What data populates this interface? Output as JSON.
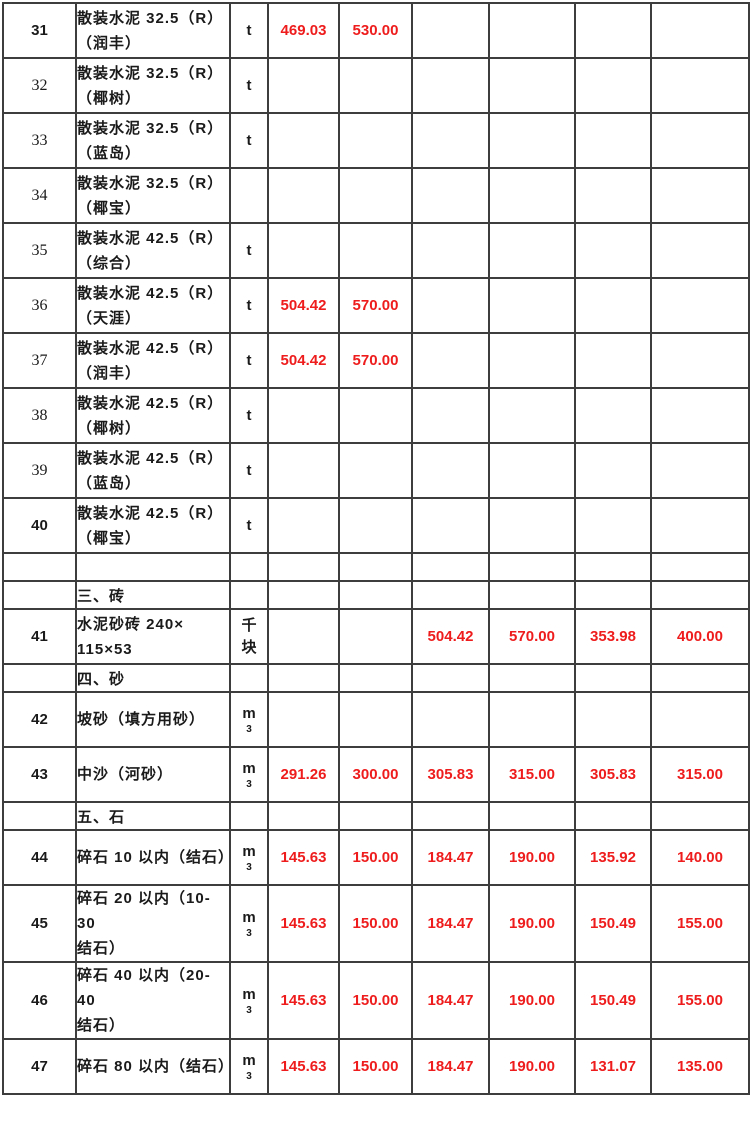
{
  "colors": {
    "price_red": "#ee1c1c",
    "grid_line": "#3d3d3d",
    "text": "#1a1a1a",
    "page_background": "#ffffff"
  },
  "table": {
    "price_column_count": 6,
    "rows": [
      {
        "type": "item",
        "no": "31",
        "num_serif": false,
        "name": "散装水泥 32.5（R）\n（润丰）",
        "unit": "t",
        "prices": [
          "469.03",
          "530.00",
          "",
          "",
          "",
          ""
        ]
      },
      {
        "type": "item",
        "no": "32",
        "num_serif": true,
        "name": "散装水泥 32.5（R）\n（椰树）",
        "unit": "t",
        "prices": [
          "",
          "",
          "",
          "",
          "",
          ""
        ]
      },
      {
        "type": "item",
        "no": "33",
        "num_serif": true,
        "name": "散装水泥 32.5（R）\n（蓝岛）",
        "unit": "t",
        "prices": [
          "",
          "",
          "",
          "",
          "",
          ""
        ]
      },
      {
        "type": "item",
        "no": "34",
        "num_serif": true,
        "name": "散装水泥 32.5（R）\n（椰宝）",
        "unit": "",
        "prices": [
          "",
          "",
          "",
          "",
          "",
          ""
        ]
      },
      {
        "type": "item",
        "no": "35",
        "num_serif": true,
        "name": "散装水泥 42.5（R）\n（综合）",
        "unit": "t",
        "prices": [
          "",
          "",
          "",
          "",
          "",
          ""
        ]
      },
      {
        "type": "item",
        "no": "36",
        "num_serif": true,
        "name": "散装水泥 42.5（R）\n（天涯）",
        "unit": "t",
        "prices": [
          "504.42",
          "570.00",
          "",
          "",
          "",
          ""
        ]
      },
      {
        "type": "item",
        "no": "37",
        "num_serif": true,
        "name": "散装水泥 42.5（R）\n（润丰）",
        "unit": "t",
        "prices": [
          "504.42",
          "570.00",
          "",
          "",
          "",
          ""
        ]
      },
      {
        "type": "item",
        "no": "38",
        "num_serif": true,
        "name": "散装水泥 42.5（R）\n（椰树）",
        "unit": "t",
        "prices": [
          "",
          "",
          "",
          "",
          "",
          ""
        ]
      },
      {
        "type": "item",
        "no": "39",
        "num_serif": true,
        "name": "散装水泥 42.5（R）\n（蓝岛）",
        "unit": "t",
        "prices": [
          "",
          "",
          "",
          "",
          "",
          ""
        ]
      },
      {
        "type": "item",
        "no": "40",
        "num_serif": false,
        "name": "散装水泥 42.5（R）\n（椰宝）",
        "unit": "t",
        "prices": [
          "",
          "",
          "",
          "",
          "",
          ""
        ]
      },
      {
        "type": "empty"
      },
      {
        "type": "section",
        "name": "三、砖"
      },
      {
        "type": "item",
        "no": "41",
        "num_serif": false,
        "name": "水泥砂砖 240×\n115×53",
        "unit": "千块",
        "prices": [
          "",
          "",
          "504.42",
          "570.00",
          "353.98",
          "400.00"
        ]
      },
      {
        "type": "section",
        "name": "四、砂"
      },
      {
        "type": "item",
        "no": "42",
        "num_serif": false,
        "name": "坡砂（填方用砂）",
        "unit": "m³",
        "prices": [
          "",
          "",
          "",
          "",
          "",
          ""
        ]
      },
      {
        "type": "item",
        "no": "43",
        "num_serif": false,
        "name": "中沙（河砂）",
        "unit": "m³",
        "prices": [
          "291.26",
          "300.00",
          "305.83",
          "315.00",
          "305.83",
          "315.00"
        ]
      },
      {
        "type": "section",
        "name": "五、石"
      },
      {
        "type": "item",
        "no": "44",
        "num_serif": false,
        "name": "碎石 10 以内（结石）",
        "unit": "m³",
        "prices": [
          "145.63",
          "150.00",
          "184.47",
          "190.00",
          "135.92",
          "140.00"
        ]
      },
      {
        "type": "item",
        "no": "45",
        "num_serif": false,
        "name": "碎石 20 以内（10-30\n结石）",
        "unit": "m³",
        "prices": [
          "145.63",
          "150.00",
          "184.47",
          "190.00",
          "150.49",
          "155.00"
        ]
      },
      {
        "type": "item",
        "no": "46",
        "num_serif": false,
        "name": "碎石 40 以内（20-40\n结石）",
        "unit": "m³",
        "prices": [
          "145.63",
          "150.00",
          "184.47",
          "190.00",
          "150.49",
          "155.00"
        ]
      },
      {
        "type": "item",
        "no": "47",
        "num_serif": false,
        "name": "碎石 80 以内（结石）",
        "unit": "m³",
        "prices": [
          "145.63",
          "150.00",
          "184.47",
          "190.00",
          "131.07",
          "135.00"
        ]
      }
    ]
  }
}
